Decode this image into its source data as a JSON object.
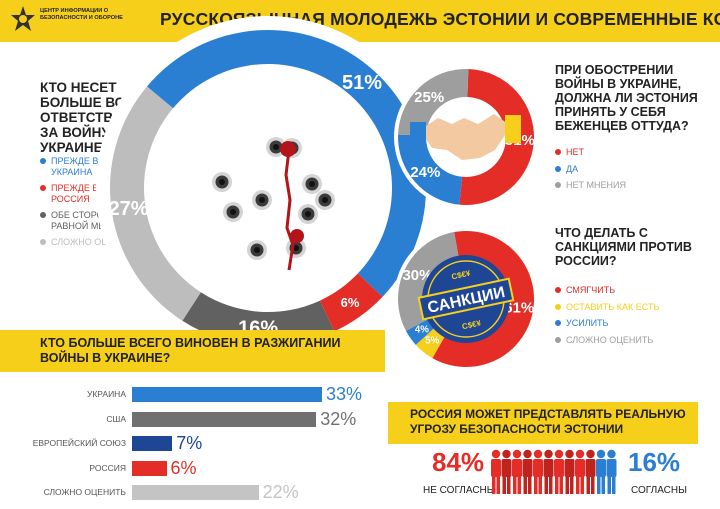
{
  "header": {
    "logo_text": "ЦЕНТР ИНФОРМАЦИИ О БЕЗОПАСНОСТИ И ОБОРОНЕ",
    "title": "РУССКОЯЗЫЧНАЯ МОЛОДЕЖЬ ЭСТОНИИ И СОВРЕМЕННЫЕ КОНФЛИКТЫ"
  },
  "colors": {
    "yellow": "#f6cf1b",
    "blue": "#2b7fd3",
    "red": "#e52d27",
    "dark_gray": "#616161",
    "light_gray": "#bdbdbd",
    "navy": "#1f4595"
  },
  "chart_data": [
    {
      "type": "pie",
      "title": "КТО НЕСЕТ БОЛЬШЕ ВСЕГО ОТВЕТСТВЕННОСТИ ЗА ВОЙНУ В УКРАИНЕ?",
      "slices": [
        {
          "label": "ПРЕЖДЕ ВСЕГО УКРАИНА",
          "value": 51,
          "value_label": "51%",
          "color": "#2b7fd3"
        },
        {
          "label": "ПРЕЖДЕ ВСЕГО РОССИЯ",
          "value": 6,
          "value_label": "6%",
          "color": "#e52d27"
        },
        {
          "label": "ОБЕ СТОРОНЫ В РАВНОЙ МЕРЕ",
          "value": 16,
          "value_label": "16%",
          "color": "#616161"
        },
        {
          "label": "СЛОЖНО ОЦЕНИТЬ",
          "value": 27,
          "value_label": "27%",
          "color": "#bdbdbd"
        }
      ]
    },
    {
      "type": "pie",
      "title": "ПРИ ОБОСТРЕНИИ ВОЙНЫ В УКРАИНЕ, ДОЛЖНА ЛИ ЭСТОНИЯ ПРИНЯТЬ У СЕБЯ БЕЖЕНЦЕВ ОТТУДА?",
      "slices": [
        {
          "label": "НЕТ",
          "value": 51,
          "value_label": "51%",
          "color": "#e52d27"
        },
        {
          "label": "ДА",
          "value": 24,
          "value_label": "24%",
          "color": "#2b7fd3"
        },
        {
          "label": "НЕТ МНЕНИЯ",
          "value": 25,
          "value_label": "25%",
          "color": "#9e9e9e"
        }
      ]
    },
    {
      "type": "pie",
      "title": "ЧТО ДЕЛАТЬ С САНКЦИЯМИ ПРОТИВ РОССИИ?",
      "center_label": "САНКЦИИ",
      "slices": [
        {
          "label": "СМЯГЧИТЬ",
          "value": 61,
          "value_label": "61%",
          "color": "#e52d27"
        },
        {
          "label": "ОСТАВИТЬ КАК ЕСТЬ",
          "value": 5,
          "value_label": "5%",
          "color": "#f6cf1b"
        },
        {
          "label": "УСИЛИТЬ",
          "value": 4,
          "value_label": "4%",
          "color": "#2b7fd3"
        },
        {
          "label": "СЛОЖНО ОЦЕНИТЬ",
          "value": 30,
          "value_label": "30%",
          "color": "#9e9e9e"
        }
      ]
    },
    {
      "type": "bar",
      "title": "КТО БОЛЬШЕ ВСЕГО ВИНОВЕН В РАЗЖИГАНИИ ВОЙНЫ В УКРАИНЕ?",
      "categories": [
        "УКРАИНА",
        "США",
        "ЕВРОПЕЙСКИЙ СОЮЗ",
        "РОССИЯ",
        "СЛОЖНО ОЦЕНИТЬ"
      ],
      "values": [
        33,
        32,
        7,
        6,
        22
      ],
      "value_labels": [
        "33%",
        "32%",
        "7%",
        "6%",
        "22%"
      ],
      "colors": [
        "#2b7fd3",
        "#707070",
        "#1f4595",
        "#e52d27",
        "#c4c4c4"
      ]
    },
    {
      "type": "bar",
      "title": "РОССИЯ МОЖЕТ ПРЕДСТАВЛЯТЬ РЕАЛЬНУЮ УГРОЗУ БЕЗОПАСНОСТИ ЭСТОНИИ",
      "categories": [
        "НЕ СОГЛАСНЫ",
        "СОГЛАСНЫ"
      ],
      "values": [
        84,
        16
      ],
      "value_labels": [
        "84%",
        "16%"
      ],
      "colors": [
        "#e52d27",
        "#2b7fd3"
      ]
    }
  ],
  "sanctions_badge": {
    "text": "САНКЦИИ",
    "small_top": "C$€¥",
    "small_bottom": "C$€¥"
  }
}
